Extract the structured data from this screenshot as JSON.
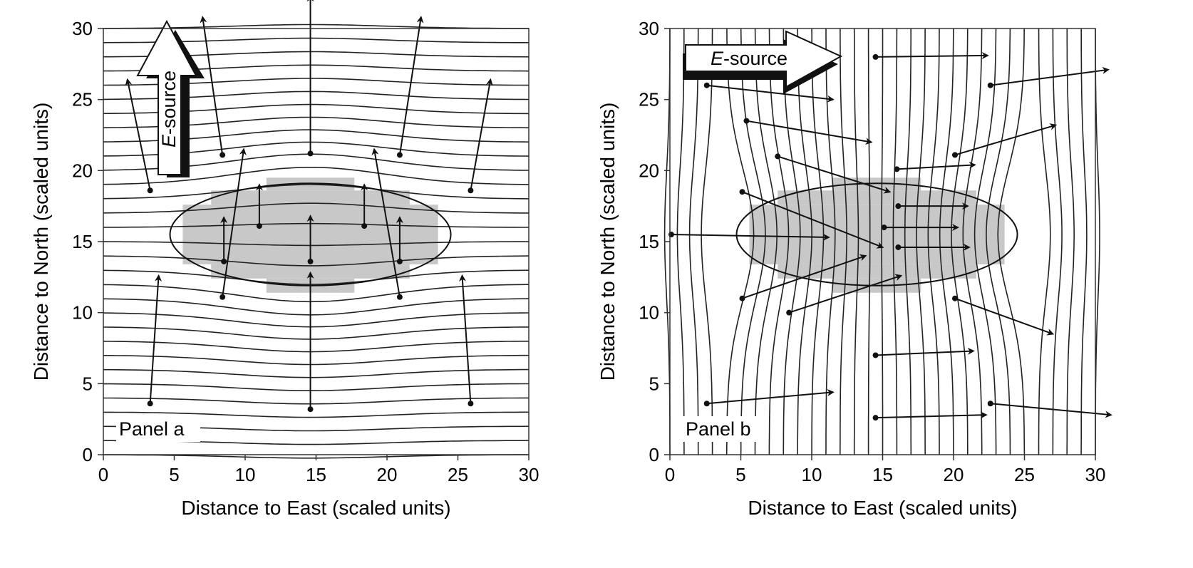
{
  "panels": [
    {
      "label": "Panel a",
      "source_text": "-source",
      "source_letter": "E",
      "source_direction": "north",
      "field_direction": "north",
      "xlabel": "Distance to East (scaled units)",
      "ylabel": "Distance to North (scaled units)",
      "xlim": [
        0,
        30
      ],
      "ylim": [
        0,
        30
      ],
      "xticks": [
        "0",
        "5",
        "10",
        "15",
        "20",
        "25",
        "30"
      ],
      "yticks": [
        "0",
        "5",
        "10",
        "15",
        "20",
        "25",
        "30"
      ],
      "line_orientation": "east-west",
      "ellipse": {
        "cx": 14.6,
        "cy": 15.5,
        "rx": 9.9,
        "ry": 3.6
      }
    },
    {
      "label": "Panel b",
      "source_text": "-source",
      "source_letter": "E",
      "source_direction": "east",
      "field_direction": "east",
      "xlabel": "Distance to East (scaled units)",
      "ylabel": "Distance to North (scaled units)",
      "xlim": [
        0,
        30
      ],
      "ylim": [
        0,
        30
      ],
      "xticks": [
        "0",
        "5",
        "10",
        "15",
        "20",
        "25",
        "30"
      ],
      "yticks": [
        "0",
        "5",
        "10",
        "15",
        "20",
        "25",
        "30"
      ],
      "line_orientation": "north-south",
      "ellipse": {
        "cx": 14.6,
        "cy": 15.5,
        "rx": 9.9,
        "ry": 3.6
      }
    }
  ]
}
